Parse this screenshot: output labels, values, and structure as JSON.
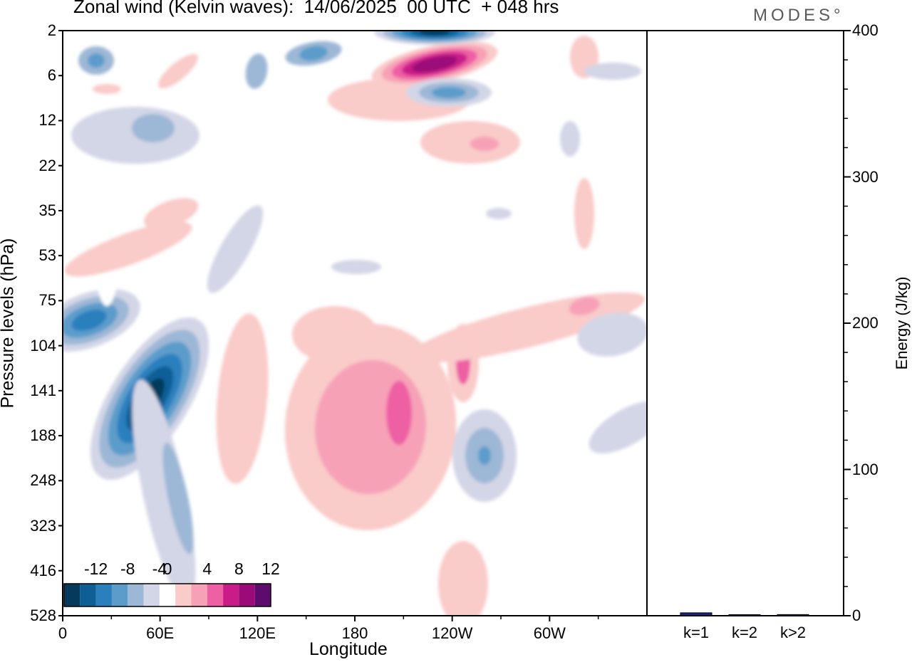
{
  "header": {
    "title": "Zonal wind (Kelvin waves):  14/06/2025  00 UTC  + 048 hrs",
    "logo_text": "MODES°"
  },
  "chart_data": [
    {
      "type": "heatmap",
      "title": "Zonal wind (Kelvin waves):  14/06/2025  00 UTC  + 048 hrs",
      "xlabel": "Longitude",
      "ylabel": "Pressure levels (hPa)",
      "x_ticks": [
        "0",
        "60E",
        "120E",
        "180",
        "120W",
        "60W"
      ],
      "x_tick_degrees": [
        0,
        60,
        120,
        180,
        240,
        300
      ],
      "xlim": [
        0,
        360
      ],
      "y_ticks": [
        "2",
        "6",
        "12",
        "22",
        "35",
        "53",
        "75",
        "104",
        "141",
        "188",
        "248",
        "323",
        "416",
        "528"
      ],
      "colorbar": {
        "tick_labels": [
          "-12",
          "-8",
          "-4",
          "0",
          "4",
          "8",
          "12"
        ],
        "levels": [
          -14,
          -12,
          -10,
          -8,
          -6,
          -4,
          -2,
          2,
          4,
          6,
          8,
          10,
          12,
          14
        ],
        "colors": [
          "#053a5c",
          "#0f5f97",
          "#2a7fbd",
          "#5b9ccb",
          "#9db7d6",
          "#d3d6e6",
          "#ffffff",
          "#f9cbc9",
          "#f7a1b7",
          "#ee5fa4",
          "#c91c88",
          "#9b0a78",
          "#5e0b6e"
        ]
      },
      "features": [
        {
          "kind": "negative",
          "max_abs": 13,
          "lon_center": 67,
          "level_center": "141",
          "desc": "strong easterly anomaly tilting up to 75 hPa near 0-40E"
        },
        {
          "kind": "positive",
          "max": 13,
          "lon_center": 230,
          "level_center": "6",
          "desc": "strong westerly anomaly near 120W-90W in upper stratosphere"
        },
        {
          "kind": "negative",
          "max_abs": 13,
          "lon_center": 225,
          "level_center": "2",
          "desc": "easterly anomaly at top of domain"
        },
        {
          "kind": "positive",
          "max": 8,
          "lon_center": 205,
          "level_center": "141-188",
          "desc": "broad westerly anomaly in upper troposphere 150E-130W"
        },
        {
          "kind": "negative",
          "max_abs": 6,
          "lon_center": 248,
          "level_center": "188",
          "desc": "easterly anomaly near 110W"
        }
      ]
    },
    {
      "type": "bar",
      "ylabel": "Energy (J/kg)",
      "categories": [
        "k=1",
        "k=2",
        "k>2"
      ],
      "values": [
        2,
        0.5,
        0.8
      ],
      "ylim": [
        0,
        400
      ],
      "y_ticks": [
        "0",
        "100",
        "200",
        "300",
        "400"
      ],
      "bar_color": "#1a237e"
    }
  ]
}
